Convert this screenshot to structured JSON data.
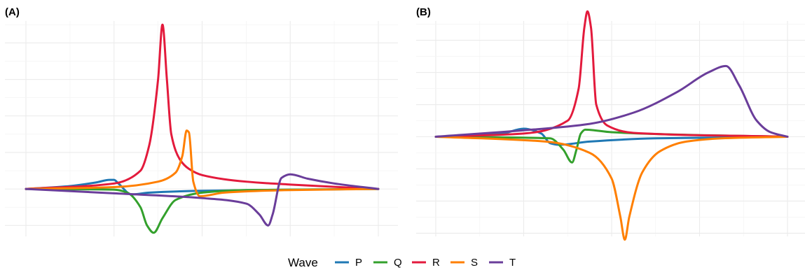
{
  "legend": {
    "title": "Wave",
    "items": [
      {
        "label": "P",
        "color": "#1f78b4"
      },
      {
        "label": "Q",
        "color": "#33a02c"
      },
      {
        "label": "R",
        "color": "#e31a3c"
      },
      {
        "label": "S",
        "color": "#ff7f00"
      },
      {
        "label": "T",
        "color": "#6a3d9a"
      }
    ]
  },
  "chart_data": [
    {
      "type": "line",
      "panel_label": "(A)",
      "xlim": [
        -4,
        4
      ],
      "ylim": [
        -1.3,
        4.6
      ],
      "grid": true,
      "axis_tick_labels": false,
      "series": [
        {
          "name": "P",
          "color": "#1f78b4",
          "x": [
            -4,
            -3,
            -2.4,
            -2.1,
            -2.0,
            -1.9,
            -1.6,
            -1.2,
            0,
            2,
            4
          ],
          "y": [
            0,
            0.08,
            0.18,
            0.25,
            0.25,
            0.15,
            -0.15,
            -0.1,
            -0.05,
            -0.02,
            0
          ]
        },
        {
          "name": "Q",
          "color": "#33a02c",
          "x": [
            -4,
            -2,
            -1.7,
            -1.4,
            -1.25,
            -1.1,
            -0.9,
            -0.6,
            0,
            1,
            4
          ],
          "y": [
            0,
            -0.02,
            -0.1,
            -0.5,
            -1.0,
            -1.2,
            -0.8,
            -0.3,
            -0.1,
            -0.03,
            0
          ]
        },
        {
          "name": "R",
          "color": "#e31a3c",
          "x": [
            -4,
            -2,
            -1.4,
            -1.2,
            -1.0,
            -0.9,
            -0.8,
            -0.7,
            -0.5,
            -0.3,
            0,
            1,
            2,
            4
          ],
          "y": [
            0,
            0.15,
            0.5,
            1.2,
            3.0,
            4.5,
            3.0,
            1.5,
            0.8,
            0.55,
            0.38,
            0.2,
            0.12,
            0
          ]
        },
        {
          "name": "S",
          "color": "#ff7f00",
          "x": [
            -4,
            -2,
            -1,
            -0.6,
            -0.45,
            -0.35,
            -0.3,
            -0.2,
            -0.05,
            0.5,
            2,
            4
          ],
          "y": [
            0,
            0.05,
            0.2,
            0.45,
            0.9,
            1.6,
            1.55,
            0.2,
            -0.2,
            -0.1,
            -0.03,
            0
          ]
        },
        {
          "name": "T",
          "color": "#6a3d9a",
          "x": [
            -4,
            -2,
            0,
            1,
            1.3,
            1.5,
            1.6,
            1.8,
            2.0,
            2.4,
            3,
            4
          ],
          "y": [
            0,
            -0.12,
            -0.25,
            -0.4,
            -0.7,
            -1.0,
            -0.7,
            0.3,
            0.4,
            0.28,
            0.15,
            0
          ]
        }
      ]
    },
    {
      "type": "line",
      "panel_label": "(B)",
      "xlim": [
        -4,
        4
      ],
      "ylim": [
        -3.1,
        3.6
      ],
      "grid": true,
      "axis_tick_labels": false,
      "series": [
        {
          "name": "P",
          "color": "#1f78b4",
          "x": [
            -4,
            -2.5,
            -2.0,
            -1.6,
            -1.4,
            -1.2,
            -0.5,
            1,
            4
          ],
          "y": [
            0,
            0.1,
            0.25,
            0.1,
            -0.2,
            -0.25,
            -0.15,
            -0.05,
            0
          ]
        },
        {
          "name": "Q",
          "color": "#33a02c",
          "x": [
            -4,
            -1.4,
            -1.1,
            -0.9,
            -0.8,
            -0.7,
            -0.6,
            0,
            2,
            4
          ],
          "y": [
            0,
            -0.05,
            -0.4,
            -0.8,
            -0.4,
            0.1,
            0.22,
            0.14,
            0.05,
            0
          ]
        },
        {
          "name": "R",
          "color": "#e31a3c",
          "x": [
            -4,
            -2,
            -1.0,
            -0.75,
            -0.62,
            -0.55,
            -0.47,
            -0.35,
            -0.1,
            0.5,
            4
          ],
          "y": [
            0,
            0.1,
            0.5,
            1.5,
            3.4,
            3.9,
            3.4,
            1.0,
            0.35,
            0.12,
            0
          ]
        },
        {
          "name": "S",
          "color": "#ff7f00",
          "x": [
            -4,
            -1.5,
            -0.5,
            0,
            0.2,
            0.3,
            0.4,
            0.7,
            1.1,
            1.7,
            2.5,
            4
          ],
          "y": [
            0,
            -0.15,
            -0.5,
            -1.3,
            -2.5,
            -3.2,
            -2.5,
            -1.1,
            -0.45,
            -0.15,
            -0.05,
            0
          ]
        },
        {
          "name": "T",
          "color": "#6a3d9a",
          "x": [
            -4,
            -2,
            -0.5,
            0.5,
            1.5,
            2.2,
            2.6,
            2.9,
            3.3,
            3.6,
            4
          ],
          "y": [
            0,
            0.2,
            0.4,
            0.75,
            1.4,
            2.0,
            2.2,
            1.6,
            0.5,
            0.15,
            0
          ]
        }
      ]
    }
  ]
}
